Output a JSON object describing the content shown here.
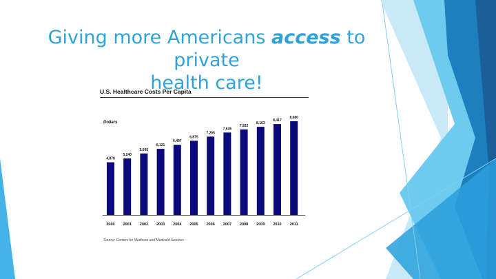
{
  "slide": {
    "title_part1": "Giving more Americans ",
    "title_emphasis": "access",
    "title_part2": " to private",
    "title_line2": "health care!",
    "title_color": "#2fa3d8"
  },
  "chart_data": {
    "type": "bar",
    "title": "U.S. Healthcare Costs Per Capita",
    "ylabel": "Dollars",
    "xlabel": "",
    "categories": [
      "2000",
      "2001",
      "2002",
      "2003",
      "2004",
      "2005",
      "2006",
      "2007",
      "2008",
      "2009",
      "2010",
      "2011"
    ],
    "values": [
      4878,
      5240,
      5695,
      6121,
      6497,
      6875,
      7255,
      7636,
      7922,
      8163,
      8417,
      8680
    ],
    "value_labels": [
      "4,878",
      "5,240",
      "5,695",
      "6,121",
      "6,497",
      "6,875",
      "7,255",
      "7,636",
      "7,922",
      "8,163",
      "8,417",
      "8,680"
    ],
    "bar_color": "#0a0a7a",
    "ylim": [
      0,
      10000
    ],
    "grid": false,
    "source": "Source: Centers for Medicare and Medicaid Services"
  }
}
